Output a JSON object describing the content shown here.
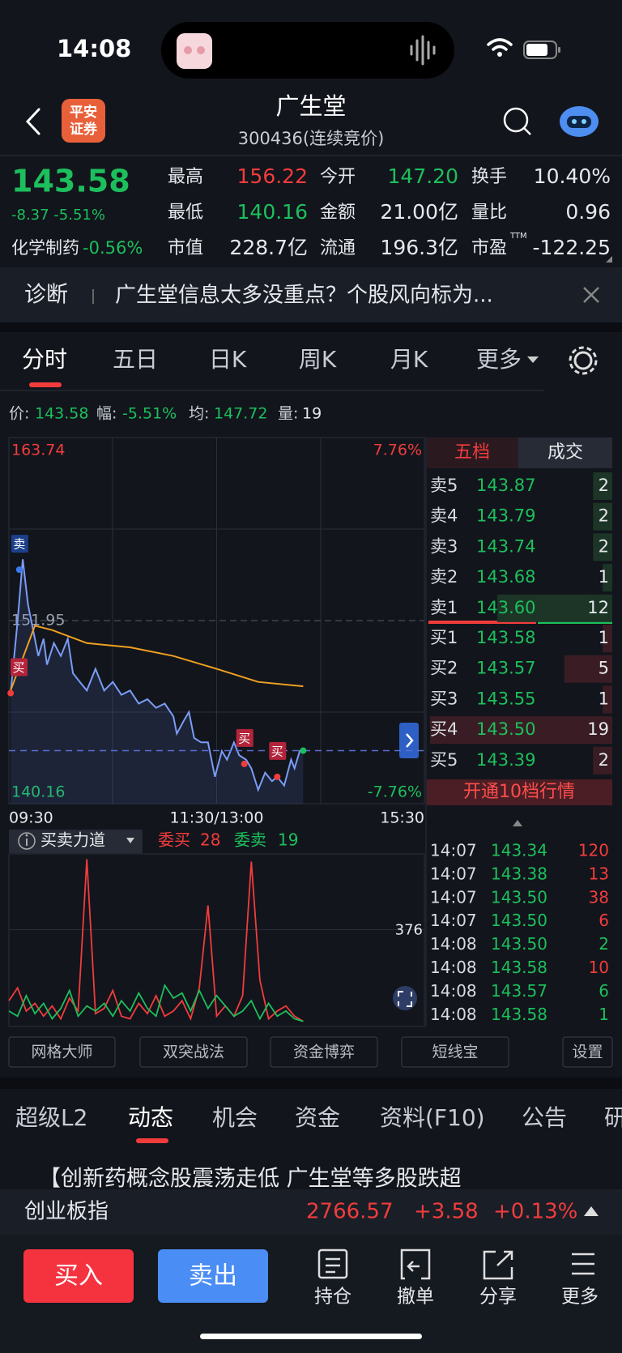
{
  "status_bar": {
    "time": "14:08"
  },
  "header": {
    "logo": [
      "平安",
      "证券"
    ],
    "title": "广生堂",
    "code": "300436(连续竞价)"
  },
  "quote": {
    "price": "143.58",
    "change": "-8.37 -5.51%",
    "sector": "化学制药",
    "sector_change": "-0.56%",
    "stats": [
      {
        "label": "最高",
        "value": "156.22",
        "color": "#f23c3c"
      },
      {
        "label": "今开",
        "value": "147.20",
        "color": "#1dbf5c"
      },
      {
        "label": "换手",
        "value": "10.40%",
        "color": "#e6e8ec"
      },
      {
        "label": "最低",
        "value": "140.16",
        "color": "#1dbf5c"
      },
      {
        "label": "金额",
        "value": "21.00亿",
        "color": "#e6e8ec"
      },
      {
        "label": "量比",
        "value": "0.96",
        "color": "#e6e8ec"
      },
      {
        "label": "市值",
        "value": "228.7亿",
        "color": "#e6e8ec"
      },
      {
        "label": "流通",
        "value": "196.3亿",
        "color": "#e6e8ec"
      },
      {
        "label": "市盈",
        "sup": "TTM",
        "value": "-122.25",
        "color": "#e6e8ec"
      }
    ]
  },
  "banner": {
    "tag": "诊断",
    "text": "广生堂信息太多没重点？个股风向标为..."
  },
  "tabs": [
    "分时",
    "五日",
    "日K",
    "周K",
    "月K",
    "更多"
  ],
  "info": [
    {
      "label": "价:",
      "value": "143.58",
      "color": "#1dbf5c"
    },
    {
      "label": "幅:",
      "value": "-5.51%",
      "color": "#1dbf5c"
    },
    {
      "label": "均:",
      "value": "147.72",
      "color": "#1dbf5c"
    },
    {
      "label": "量:",
      "value": "19",
      "color": "#e6e8ec"
    }
  ],
  "chart_data": [
    {
      "type": "line",
      "xlim": [
        0,
        240
      ],
      "xticks": [
        {
          "value": 0,
          "label": "09:30"
        },
        {
          "value": 120,
          "label": "11:30/13:00"
        },
        {
          "value": 240,
          "label": "15:30"
        }
      ],
      "ylim": [
        140.16,
        163.74
      ],
      "yticks": [
        163.74,
        151.95,
        140.16
      ],
      "y2lim": [
        -7.76,
        7.76
      ],
      "y2ticks": [
        {
          "value": 7.76,
          "label": "7.76%"
        },
        {
          "value": -7.76,
          "label": "-7.76%"
        }
      ],
      "last": 143.58,
      "series": [
        {
          "color": "#7b9cf5",
          "x": [
            1,
            5,
            8,
            11,
            14,
            17,
            20,
            22,
            26,
            30,
            34,
            37,
            41,
            45,
            50,
            55,
            60,
            65,
            70,
            75,
            80,
            85,
            90,
            95,
            97,
            101,
            104,
            107,
            111,
            115,
            119,
            123,
            126,
            130,
            133,
            137,
            140,
            144,
            148,
            152,
            155,
            159,
            163,
            165,
            168,
            170
          ],
          "values": [
            147.28,
            151.9,
            155.9,
            153.01,
            151.34,
            149.67,
            150.78,
            149.11,
            150.5,
            149.67,
            150.78,
            148.56,
            148.0,
            147.45,
            148.84,
            147.45,
            148.0,
            147.17,
            147.45,
            146.61,
            146.89,
            146.33,
            146.61,
            145.78,
            144.67,
            145.5,
            146.06,
            144.39,
            144.11,
            144.11,
            141.89,
            143.55,
            143.0,
            144.11,
            143.28,
            143.0,
            142.44,
            141.05,
            142.16,
            141.61,
            141.89,
            141.33,
            143.0,
            142.44,
            143.55,
            143.58
          ]
        },
        {
          "color": "#f0a020",
          "x": [
            1,
            15,
            25,
            45,
            70,
            95,
            120,
            144,
            170
          ],
          "values": [
            147.45,
            151.62,
            151.34,
            150.5,
            150.23,
            149.67,
            148.84,
            148.0,
            147.72
          ]
        }
      ],
      "markers": [
        {
          "label": "卖",
          "x": 6,
          "value": 155.23
        },
        {
          "label": "买",
          "x": 1,
          "value": 147.28
        },
        {
          "label": "买",
          "x": 136,
          "value": 142.72
        },
        {
          "label": "买",
          "x": 155,
          "value": 141.89
        }
      ]
    },
    {
      "type": "line",
      "xlim": [
        0,
        240
      ],
      "ylim": [
        0,
        670
      ],
      "yticks": [
        376
      ],
      "x": [
        0,
        5,
        10,
        15,
        20,
        25,
        30,
        35,
        40,
        45,
        50,
        55,
        60,
        65,
        70,
        75,
        80,
        85,
        90,
        95,
        100,
        105,
        110,
        115,
        120,
        125,
        130,
        135,
        140,
        145,
        150,
        155,
        160,
        165,
        170
      ],
      "series": [
        {
          "color": "#f23c3c",
          "values": [
            100,
            150,
            60,
            90,
            40,
            80,
            30,
            110,
            60,
            650,
            50,
            70,
            140,
            40,
            30,
            90,
            50,
            120,
            40,
            60,
            100,
            30,
            150,
            470,
            40,
            80,
            40,
            120,
            640,
            180,
            30,
            60,
            80,
            40,
            20
          ]
        },
        {
          "color": "#1dbf5c",
          "values": [
            60,
            40,
            120,
            50,
            90,
            30,
            70,
            140,
            40,
            80,
            60,
            90,
            40,
            100,
            60,
            130,
            70,
            40,
            160,
            110,
            130,
            60,
            140,
            70,
            120,
            80,
            40,
            60,
            100,
            30,
            90,
            40,
            60,
            30,
            20
          ]
        }
      ]
    }
  ],
  "indicator_header": {
    "title": "买卖力道",
    "buy_label": "委买",
    "buy": "28",
    "sell_label": "委卖",
    "sell": "19"
  },
  "order_book": {
    "tabs": [
      "五档",
      "成交"
    ],
    "rows": [
      {
        "label": "卖5",
        "price": "143.87",
        "volume": 2
      },
      {
        "label": "卖4",
        "price": "143.79",
        "volume": 2
      },
      {
        "label": "卖3",
        "price": "143.74",
        "volume": 2
      },
      {
        "label": "卖2",
        "price": "143.68",
        "volume": 1
      },
      {
        "label": "卖1",
        "price": "143.60",
        "volume": 12
      },
      {
        "label": "买1",
        "price": "143.58",
        "volume": 1
      },
      {
        "label": "买2",
        "price": "143.57",
        "volume": 5
      },
      {
        "label": "买3",
        "price": "143.55",
        "volume": 1
      },
      {
        "label": "买4",
        "price": "143.50",
        "volume": 19
      },
      {
        "label": "买5",
        "price": "143.39",
        "volume": 2
      }
    ],
    "upgrade": "开通10档行情"
  },
  "trades": [
    {
      "time": "14:07",
      "price": "143.34",
      "volume": "120",
      "color": "#f23c3c"
    },
    {
      "time": "14:07",
      "price": "143.38",
      "volume": "13",
      "color": "#f23c3c"
    },
    {
      "time": "14:07",
      "price": "143.50",
      "volume": "38",
      "color": "#f23c3c"
    },
    {
      "time": "14:07",
      "price": "143.50",
      "volume": "6",
      "color": "#f23c3c"
    },
    {
      "time": "14:08",
      "price": "143.50",
      "volume": "2",
      "color": "#1dbf5c"
    },
    {
      "time": "14:08",
      "price": "143.58",
      "volume": "10",
      "color": "#f23c3c"
    },
    {
      "time": "14:08",
      "price": "143.57",
      "volume": "6",
      "color": "#1dbf5c"
    },
    {
      "time": "14:08",
      "price": "143.58",
      "volume": "1",
      "color": "#1dbf5c"
    }
  ],
  "tools": [
    "网格大师",
    "双突战法",
    "资金博弈",
    "短线宝",
    "设置"
  ],
  "sections": [
    "超级L2",
    "动态",
    "机会",
    "资金",
    "资料(F10)",
    "公告",
    "研"
  ],
  "news": "【创新药概念股震荡走低 广生堂等多股跌超",
  "index": {
    "name": "创业板指",
    "value": "2766.57",
    "change": "+3.58",
    "percent": "+0.13%"
  },
  "actions": {
    "buy": "买入",
    "sell": "卖出",
    "items": [
      "持仓",
      "撤单",
      "分享",
      "更多"
    ]
  }
}
